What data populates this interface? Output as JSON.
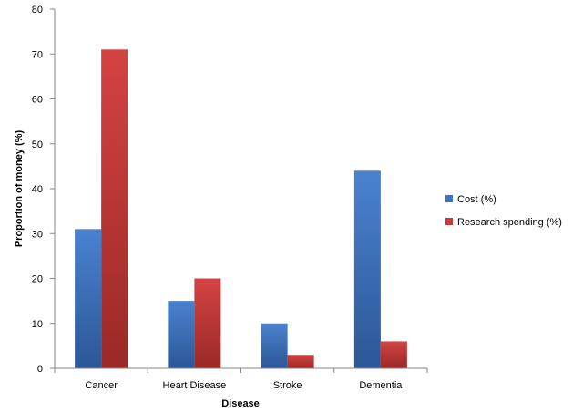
{
  "chart_data": {
    "type": "bar",
    "categories": [
      "Cancer",
      "Heart Disease",
      "Stroke",
      "Dementia"
    ],
    "series": [
      {
        "name": "Cost (%)",
        "values": [
          31,
          15,
          10,
          44
        ],
        "color": "#3f74c0"
      },
      {
        "name": "Research spending (%)",
        "values": [
          71,
          20,
          3,
          6
        ],
        "color": "#c63c3a"
      }
    ],
    "xlabel": "Disease",
    "ylabel": "Proportion of money (%)",
    "ylim": [
      0,
      80
    ],
    "yticks": [
      0,
      10,
      20,
      30,
      40,
      50,
      60,
      70,
      80
    ],
    "grid": false,
    "legend_position": "right"
  }
}
